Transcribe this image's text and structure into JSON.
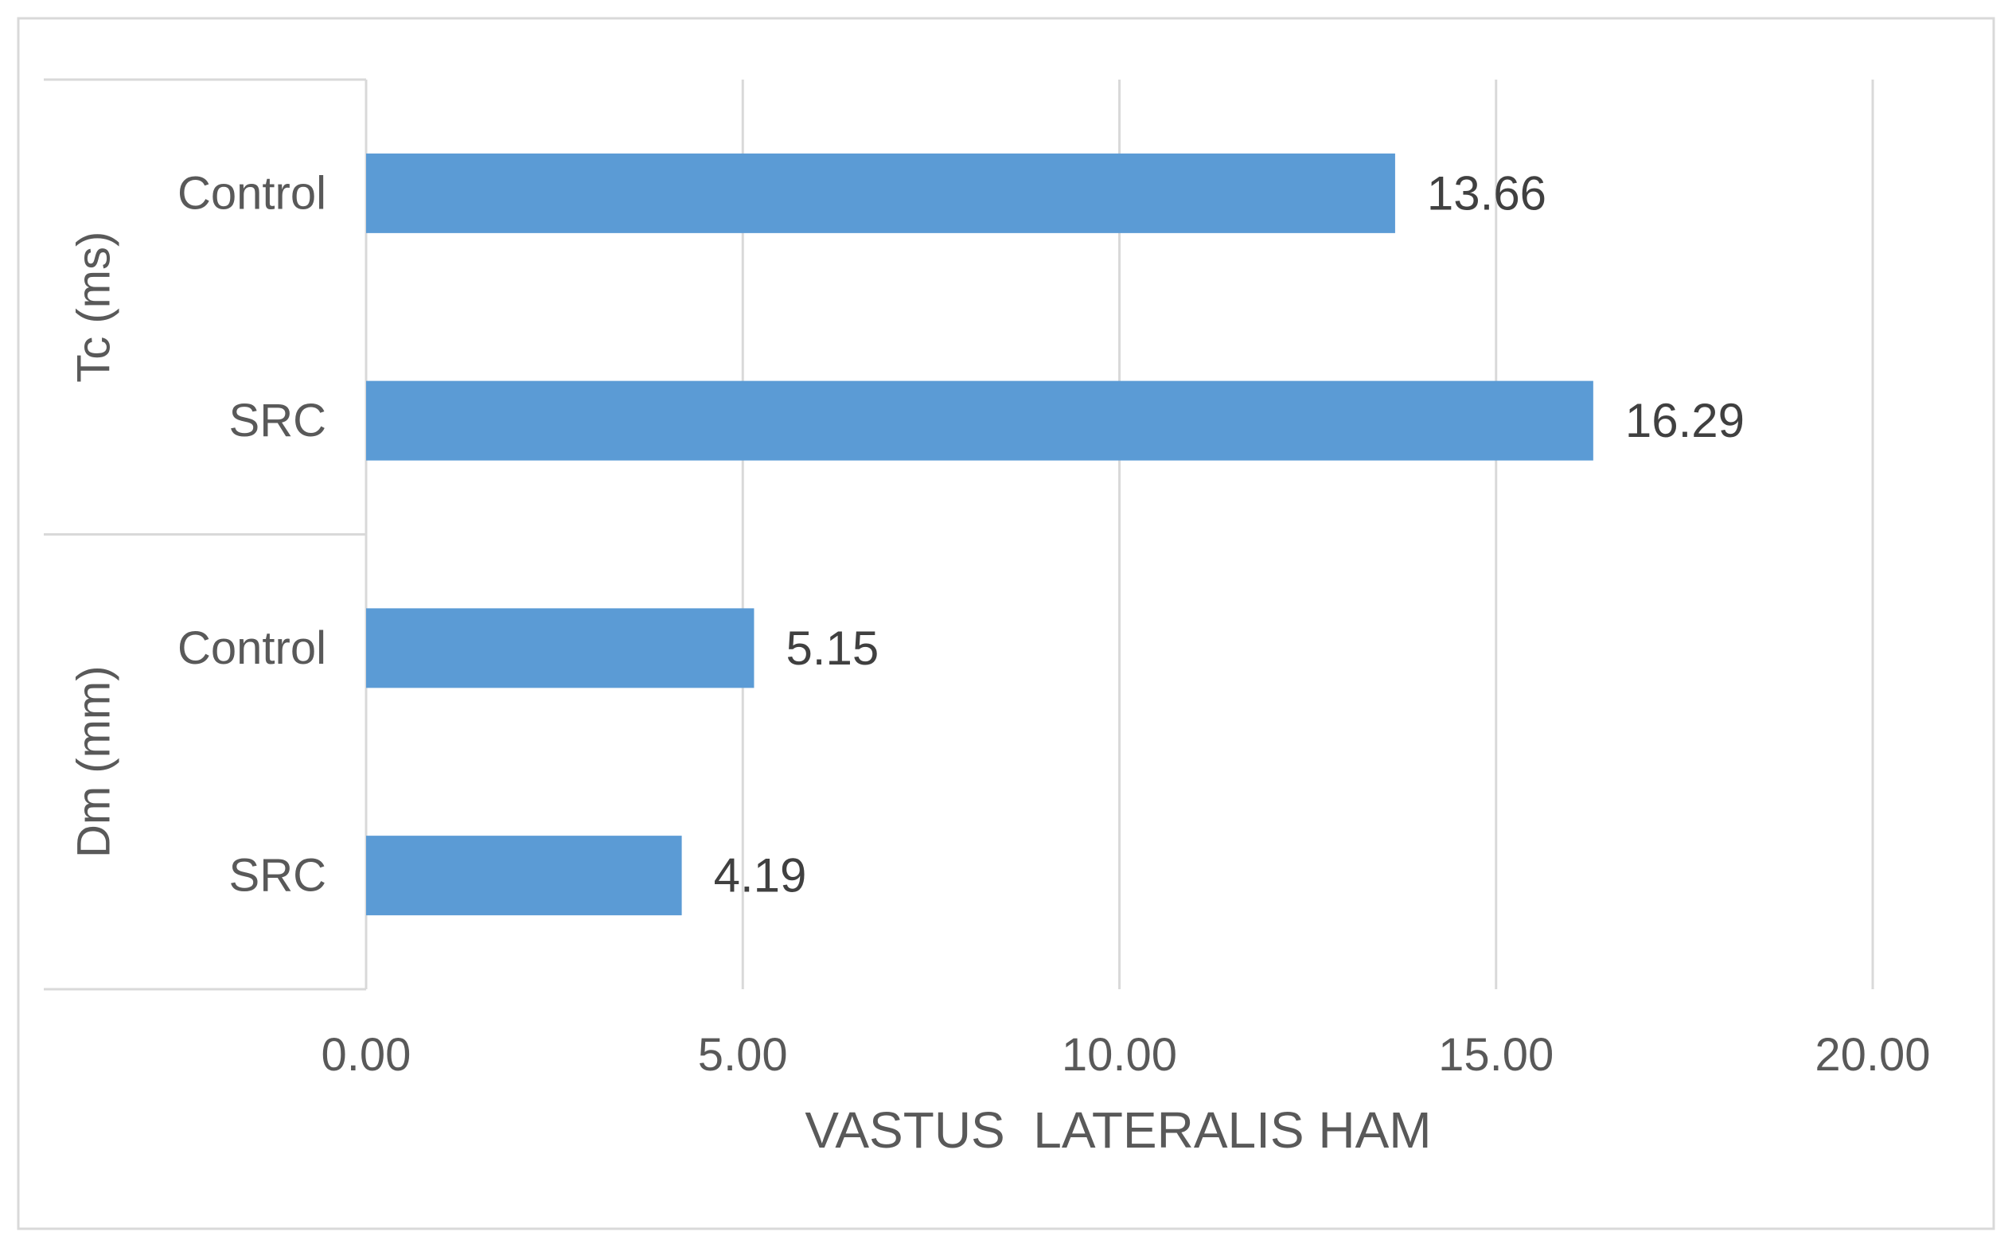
{
  "colors": {
    "bar": "#5b9bd5",
    "grid": "#d9d9d9",
    "frame": "#d9d9d9",
    "axis_line": "#d9d9d9",
    "text": "#404040",
    "label_text": "#595959"
  },
  "chart_data": {
    "type": "bar",
    "orientation": "horizontal",
    "title": "",
    "xlabel": "VASTUS  LATERALIS HAM",
    "ylabel": "",
    "xlim": [
      0,
      20
    ],
    "x_ticks": [
      0,
      5,
      10,
      15,
      20
    ],
    "x_tick_labels": [
      "0.00",
      "5.00",
      "10.00",
      "15.00",
      "20.00"
    ],
    "grid": true,
    "legend": "none",
    "groups": [
      {
        "label": "Tc (ms)",
        "bars": [
          {
            "category": "Control",
            "value": 13.66,
            "value_label": "13.66"
          },
          {
            "category": "SRC",
            "value": 16.29,
            "value_label": "16.29"
          }
        ]
      },
      {
        "label": "Dm (mm)",
        "bars": [
          {
            "category": "Control",
            "value": 5.15,
            "value_label": "5.15"
          },
          {
            "category": "SRC",
            "value": 4.19,
            "value_label": "4.19"
          }
        ]
      }
    ]
  }
}
